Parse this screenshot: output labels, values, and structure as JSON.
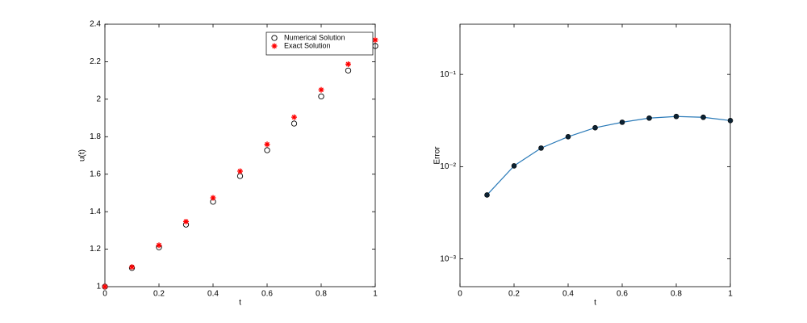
{
  "chart_data": [
    {
      "type": "scatter",
      "xlabel": "t",
      "ylabel": "u(t)",
      "x": [
        0,
        0.1,
        0.2,
        0.3,
        0.4,
        0.5,
        0.6,
        0.7,
        0.8,
        0.9,
        1
      ],
      "series": [
        {
          "name": "Numerical Solution",
          "color": "#000000",
          "marker": "circle",
          "values": [
            1,
            1.1,
            1.21,
            1.331,
            1.453,
            1.59,
            1.728,
            1.87,
            2.015,
            2.153,
            2.284
          ]
        },
        {
          "name": "Exact Solution",
          "color": "#ff0000",
          "marker": "asterisk",
          "values": [
            1,
            1.105,
            1.221,
            1.347,
            1.474,
            1.616,
            1.759,
            1.904,
            2.05,
            2.187,
            2.316
          ]
        }
      ],
      "xlim": [
        0,
        1
      ],
      "xticks": [
        0,
        0.2,
        0.4,
        0.6,
        0.8,
        1
      ],
      "ylim": [
        1,
        2.4
      ],
      "yticks": [
        1,
        1.2,
        1.4,
        1.6,
        1.8,
        2,
        2.2,
        2.4
      ],
      "legend": "upper right"
    },
    {
      "type": "line",
      "xlabel": "t",
      "ylabel": "Error",
      "yscale": "log",
      "x": [
        0.1,
        0.2,
        0.3,
        0.4,
        0.5,
        0.6,
        0.7,
        0.8,
        0.9,
        1
      ],
      "series": [
        {
          "color": "#2a7ab8",
          "marker_color": "#0b2233",
          "values": [
            0.00493,
            0.0102,
            0.0159,
            0.0211,
            0.0264,
            0.0303,
            0.0336,
            0.035,
            0.0343,
            0.0316
          ]
        }
      ],
      "xlim": [
        0,
        1
      ],
      "xticks": [
        0,
        0.2,
        0.4,
        0.6,
        0.8,
        1
      ],
      "ylim": [
        0.0005,
        0.35
      ],
      "yticks": [
        {
          "value": 0.001,
          "label": "10⁻³"
        },
        {
          "value": 0.01,
          "label": "10⁻²"
        },
        {
          "value": 0.1,
          "label": "10⁻¹"
        }
      ]
    }
  ]
}
